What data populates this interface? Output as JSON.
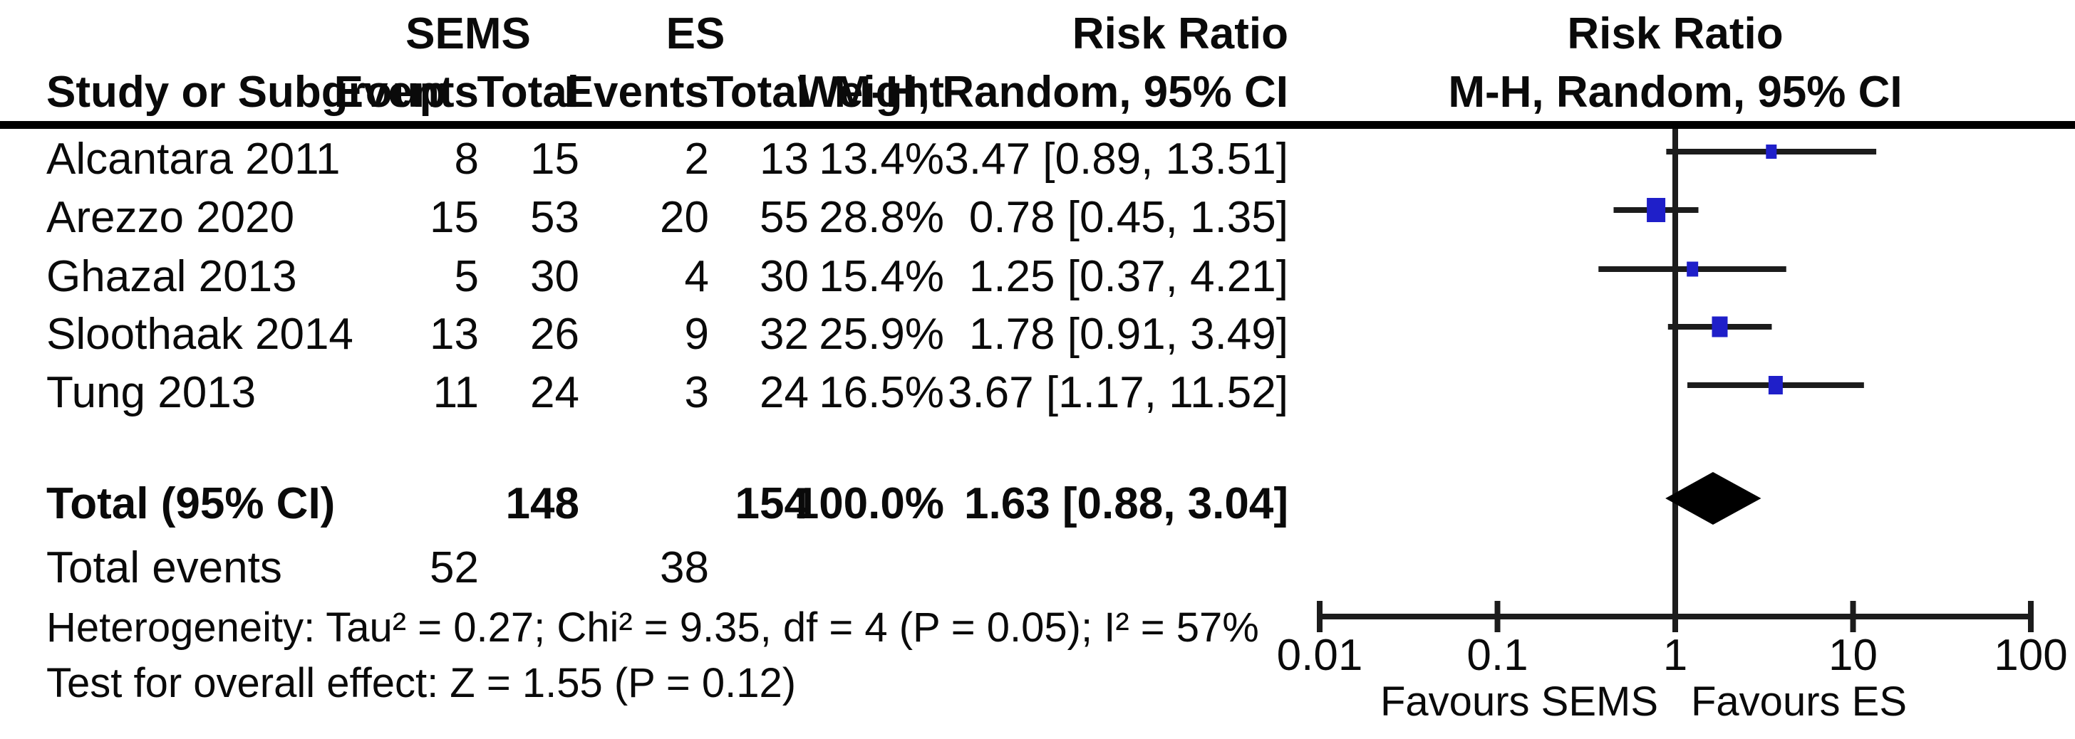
{
  "chart_data": {
    "type": "forest",
    "effect_measure": "Risk Ratio",
    "method": "M-H, Random, 95% CI",
    "group1_name": "SEMS",
    "group2_name": "ES",
    "columns": {
      "study": "Study or Subgroup",
      "events": "Events",
      "total": "Total",
      "weight": "Weight"
    },
    "studies": [
      {
        "name": "Alcantara 2011",
        "g1_events": "8",
        "g1_total": "15",
        "g2_events": "2",
        "g2_total": "13",
        "weight": "13.4%",
        "rr": 3.47,
        "lo": 0.89,
        "hi": 13.51,
        "label": "3.47 [0.89, 13.51]",
        "marker_w": 15,
        "marker_h": 20
      },
      {
        "name": "Arezzo 2020",
        "g1_events": "15",
        "g1_total": "53",
        "g2_events": "20",
        "g2_total": "55",
        "weight": "28.8%",
        "rr": 0.78,
        "lo": 0.45,
        "hi": 1.35,
        "label": "0.78 [0.45, 1.35]",
        "marker_w": 26,
        "marker_h": 34
      },
      {
        "name": "Ghazal 2013",
        "g1_events": "5",
        "g1_total": "30",
        "g2_events": "4",
        "g2_total": "30",
        "weight": "15.4%",
        "rr": 1.25,
        "lo": 0.37,
        "hi": 4.21,
        "label": "1.25 [0.37, 4.21]",
        "marker_w": 16,
        "marker_h": 21
      },
      {
        "name": "Sloothaak 2014",
        "g1_events": "13",
        "g1_total": "26",
        "g2_events": "9",
        "g2_total": "32",
        "weight": "25.9%",
        "rr": 1.78,
        "lo": 0.91,
        "hi": 3.49,
        "label": "1.78 [0.91, 3.49]",
        "marker_w": 22,
        "marker_h": 29
      },
      {
        "name": "Tung 2013",
        "g1_events": "11",
        "g1_total": "24",
        "g2_events": "3",
        "g2_total": "24",
        "weight": "16.5%",
        "rr": 3.67,
        "lo": 1.17,
        "hi": 11.52,
        "label": "3.67 [1.17, 11.52]",
        "marker_w": 20,
        "marker_h": 26
      }
    ],
    "total": {
      "name": "Total (95% CI)",
      "g1_total": "148",
      "g2_total": "154",
      "weight": "100.0%",
      "rr": 1.63,
      "lo": 0.88,
      "hi": 3.04,
      "label": "1.63 [0.88, 3.04]"
    },
    "total_events": {
      "label": "Total events",
      "g1": "52",
      "g2": "38"
    },
    "heterogeneity": "Heterogeneity: Tau² = 0.27; Chi² = 9.35, df = 4 (P = 0.05); I² = 57%",
    "overall_effect": "Test for overall effect: Z = 1.55 (P = 0.12)",
    "x_axis": {
      "scale": "log",
      "ticks": [
        "0.01",
        "0.1",
        "1",
        "10",
        "100"
      ],
      "range": [
        0.01,
        100
      ],
      "favours_left": "Favours SEMS",
      "favours_right": "Favours ES"
    },
    "colors": {
      "marker": "#1f1fc9",
      "ci_line": "#1c1c1c",
      "diamond": "#000000",
      "text": "#0a0a0a"
    }
  }
}
